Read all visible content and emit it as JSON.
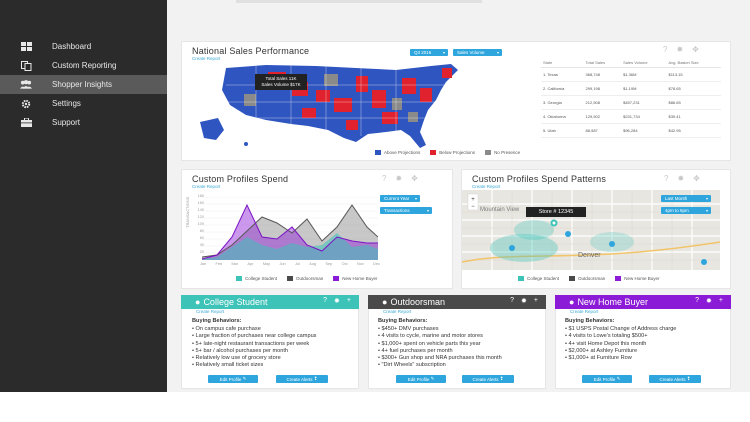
{
  "sidebar": {
    "items": [
      {
        "label": "Dashboard",
        "icon": "dashboard-icon"
      },
      {
        "label": "Custom Reporting",
        "icon": "copy-icon"
      },
      {
        "label": "Shopper Insights",
        "icon": "users-icon",
        "active": true
      },
      {
        "label": "Settings",
        "icon": "gear-icon"
      },
      {
        "label": "Support",
        "icon": "briefcase-icon"
      }
    ]
  },
  "sales": {
    "title": "National Sales Performance",
    "subtitle": "Create Report",
    "period": "Q3 2016",
    "metric": "Sales Volume",
    "tooltip": {
      "line1": "Total Sales 11K",
      "line2": "Sales Volume $17K"
    },
    "legend": [
      "Above Projections",
      "Below Projections",
      "No Presence"
    ],
    "table": {
      "headers": [
        "State",
        "Total Sales",
        "Sales Volume",
        "Avg. Basket Size"
      ],
      "rows": [
        [
          "1. Texas",
          "368,748",
          "$1.36M",
          "$113.15"
        ],
        [
          "2. California",
          "299,198",
          "$1.19M",
          "$78.65"
        ],
        [
          "3. Georgia",
          "212,508",
          "$457,231",
          "$86.65"
        ],
        [
          "4. Oklahoma",
          "129,502",
          "$231,734",
          "$39.41"
        ],
        [
          "5. Utah",
          "88,587",
          "$96,284",
          "$42.95"
        ]
      ]
    },
    "colors": {
      "above": "#2f55c0",
      "below": "#e0222e",
      "none": "#8a8a8a"
    }
  },
  "profiles": {
    "title": "Custom Profiles Spend",
    "subtitle": "Create Report",
    "filter1": "Current Year",
    "filter2": "Transactions",
    "ylabel": "TRANSACTIONS",
    "yticks": [
      "180",
      "160",
      "140",
      "120",
      "100",
      "80",
      "60",
      "40",
      "20",
      "0"
    ],
    "xticks": [
      "Jan",
      "Feb",
      "Mar",
      "Apr",
      "May",
      "Jun",
      "Jul",
      "Aug",
      "Sep",
      "Oct",
      "Nov",
      "Dec"
    ],
    "legend": [
      "College Student",
      "Outdoorsman",
      "New Home Buyer"
    ]
  },
  "patterns": {
    "title": "Custom Profiles Spend Patterns",
    "subtitle": "Create Report",
    "filter1": "Last Month",
    "filter2": "4pm to 6pm",
    "store_label": "Store # 12345",
    "map_labels": [
      "Mountain View",
      "Denver"
    ],
    "legend": [
      "College Student",
      "Outdoorsman",
      "New Home Buyer"
    ]
  },
  "personas": [
    {
      "name": "College Student",
      "subtitle": "Create Report",
      "color": "#3dc3b8",
      "heading": "Buying Behaviors:",
      "items": [
        "On campus cafe purchase",
        "Large fraction of purchases near college campus",
        "5+ late-night restaurant transactions per week",
        "5+ bar / alcohol purchases per month",
        "Relatively low use of grocery store",
        "Relatively small ticket sizes"
      ],
      "edit": "Edit Profile",
      "alerts": "Create Alerts"
    },
    {
      "name": "Outdoorsman",
      "subtitle": "Create Report",
      "color": "#4a4a4a",
      "heading": "Buying Behaviors:",
      "items": [
        "$450+ DMV purchases",
        "4 visits to cycle, marine and motor stores",
        "$1,000+ spent on vehicle parts this year",
        "4+ fuel purchases per month",
        "$300+ Gun shop and NRA purchases this month",
        "\"Dirt Wheels\" subscription"
      ],
      "edit": "Edit Profile",
      "alerts": "Create Alerts"
    },
    {
      "name": "New Home Buyer",
      "subtitle": "Create Report",
      "color": "#8b1bd6",
      "heading": "Buying Behaviors:",
      "items": [
        "$1 USPS Postal Change of Address charge",
        "4 visits to Lowe's totaling $500+",
        "4+ visit Home Depot this month",
        "$2,000+ at Ashley Furniture",
        "$1,000+ at Furniture Row"
      ],
      "edit": "Edit Profile",
      "alerts": "Create Alerts"
    }
  ]
}
